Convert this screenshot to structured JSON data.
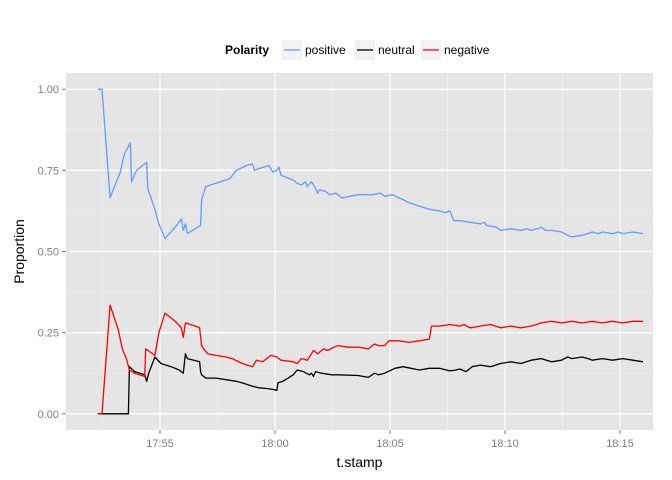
{
  "chart_data": {
    "type": "line",
    "title": "",
    "xlabel": "t.stamp",
    "ylabel": "Proportion",
    "x_unit": "minutes past 17:00",
    "xlim": [
      52.3,
      76.0
    ],
    "ylim": [
      -0.05,
      1.05
    ],
    "x_ticks": [
      55,
      60,
      65,
      70,
      75
    ],
    "x_tick_labels": [
      "17:55",
      "18:00",
      "18:05",
      "18:10",
      "18:15"
    ],
    "y_ticks": [
      0,
      0.25,
      0.5,
      0.75,
      1.0
    ],
    "y_tick_labels": [
      "0.00",
      "0.25",
      "0.50",
      "0.75",
      "1.00"
    ],
    "grid": true,
    "legend": {
      "title": "Polarity",
      "position": "top"
    },
    "series": [
      {
        "name": "positive",
        "color": "#619CFF",
        "points": [
          [
            52.2,
            1.0
          ],
          [
            52.4,
            1.0
          ],
          [
            52.8,
            0.665
          ],
          [
            53.3,
            0.745
          ],
          [
            53.5,
            0.8
          ],
          [
            53.8,
            0.835
          ],
          [
            53.85,
            0.715
          ],
          [
            54.1,
            0.75
          ],
          [
            54.6,
            0.775
          ],
          [
            54.65,
            0.695
          ],
          [
            55.0,
            0.63
          ],
          [
            55.2,
            0.585
          ],
          [
            55.5,
            0.54
          ],
          [
            56.0,
            0.575
          ],
          [
            56.3,
            0.6
          ],
          [
            56.4,
            0.565
          ],
          [
            56.5,
            0.585
          ],
          [
            56.6,
            0.555
          ],
          [
            57.1,
            0.575
          ],
          [
            57.25,
            0.58
          ],
          [
            57.3,
            0.66
          ],
          [
            57.4,
            0.68
          ],
          [
            57.5,
            0.7
          ],
          [
            58.0,
            0.71
          ],
          [
            58.7,
            0.725
          ],
          [
            59.0,
            0.75
          ],
          [
            59.5,
            0.765
          ],
          [
            59.8,
            0.77
          ],
          [
            59.9,
            0.75
          ],
          [
            60.1,
            0.755
          ],
          [
            60.6,
            0.765
          ],
          [
            60.8,
            0.745
          ],
          [
            61.0,
            0.75
          ],
          [
            61.1,
            0.76
          ],
          [
            61.2,
            0.735
          ],
          [
            61.8,
            0.72
          ],
          [
            62.0,
            0.71
          ],
          [
            62.2,
            0.705
          ],
          [
            62.4,
            0.715
          ],
          [
            62.5,
            0.7
          ],
          [
            62.7,
            0.715
          ],
          [
            62.8,
            0.705
          ],
          [
            62.9,
            0.695
          ],
          [
            63.0,
            0.68
          ],
          [
            63.1,
            0.69
          ],
          [
            63.4,
            0.685
          ],
          [
            63.6,
            0.675
          ],
          [
            63.9,
            0.68
          ],
          [
            64.2,
            0.665
          ],
          [
            65.0,
            0.675
          ],
          [
            65.7,
            0.675
          ],
          [
            66.1,
            0.68
          ],
          [
            66.3,
            0.67
          ],
          [
            66.7,
            0.675
          ],
          [
            67.0,
            0.665
          ],
          [
            67.2,
            0.66
          ],
          [
            67.5,
            0.65
          ],
          [
            68.0,
            0.64
          ],
          [
            68.5,
            0.63
          ],
          [
            69.0,
            0.625
          ],
          [
            69.3,
            0.62
          ],
          [
            69.5,
            0.625
          ],
          [
            69.6,
            0.61
          ],
          [
            69.7,
            0.595
          ],
          [
            70.0,
            0.595
          ],
          [
            71.0,
            0.585
          ],
          [
            71.2,
            0.59
          ],
          [
            71.3,
            0.58
          ],
          [
            71.8,
            0.575
          ],
          [
            72.0,
            0.565
          ],
          [
            72.5,
            0.57
          ],
          [
            73.0,
            0.565
          ],
          [
            73.3,
            0.57
          ],
          [
            73.5,
            0.565
          ],
          [
            73.8,
            0.57
          ],
          [
            74.0,
            0.575
          ],
          [
            74.2,
            0.565
          ],
          [
            74.5,
            0.565
          ],
          [
            75.0,
            0.56
          ],
          [
            75.3,
            0.55
          ],
          [
            75.5,
            0.545
          ],
          [
            76.0,
            0.55
          ],
          [
            76.3,
            0.555
          ],
          [
            76.5,
            0.56
          ],
          [
            76.8,
            0.555
          ],
          [
            77.0,
            0.56
          ],
          [
            77.5,
            0.555
          ],
          [
            77.8,
            0.56
          ],
          [
            78.0,
            0.555
          ],
          [
            78.5,
            0.56
          ],
          [
            79.0,
            0.555
          ]
        ]
      },
      {
        "name": "neutral",
        "color": "#000000",
        "points": [
          [
            52.2,
            0.0
          ],
          [
            53.5,
            0.0
          ],
          [
            53.7,
            0.0
          ],
          [
            53.75,
            0.145
          ],
          [
            54.0,
            0.13
          ],
          [
            54.5,
            0.12
          ],
          [
            54.6,
            0.1
          ],
          [
            54.7,
            0.125
          ],
          [
            55.0,
            0.175
          ],
          [
            55.3,
            0.155
          ],
          [
            55.8,
            0.145
          ],
          [
            56.2,
            0.135
          ],
          [
            56.4,
            0.125
          ],
          [
            56.5,
            0.185
          ],
          [
            56.6,
            0.17
          ],
          [
            57.2,
            0.16
          ],
          [
            57.25,
            0.13
          ],
          [
            57.3,
            0.12
          ],
          [
            57.5,
            0.11
          ],
          [
            58.0,
            0.11
          ],
          [
            58.5,
            0.105
          ],
          [
            59.0,
            0.1
          ],
          [
            59.3,
            0.095
          ],
          [
            59.8,
            0.085
          ],
          [
            60.1,
            0.08
          ],
          [
            60.5,
            0.078
          ],
          [
            60.8,
            0.075
          ],
          [
            61.0,
            0.072
          ],
          [
            61.05,
            0.095
          ],
          [
            61.3,
            0.1
          ],
          [
            61.8,
            0.12
          ],
          [
            62.0,
            0.135
          ],
          [
            62.3,
            0.13
          ],
          [
            62.6,
            0.12
          ],
          [
            62.7,
            0.125
          ],
          [
            62.8,
            0.115
          ],
          [
            62.9,
            0.13
          ],
          [
            63.2,
            0.125
          ],
          [
            63.7,
            0.12
          ],
          [
            64.0,
            0.12
          ],
          [
            65.0,
            0.118
          ],
          [
            65.5,
            0.112
          ],
          [
            65.8,
            0.125
          ],
          [
            66.0,
            0.12
          ],
          [
            66.3,
            0.125
          ],
          [
            66.8,
            0.14
          ],
          [
            67.2,
            0.145
          ],
          [
            67.6,
            0.14
          ],
          [
            68.0,
            0.135
          ],
          [
            68.5,
            0.14
          ],
          [
            69.0,
            0.14
          ],
          [
            69.5,
            0.132
          ],
          [
            69.8,
            0.135
          ],
          [
            70.0,
            0.138
          ],
          [
            70.3,
            0.13
          ],
          [
            70.6,
            0.145
          ],
          [
            71.0,
            0.15
          ],
          [
            71.5,
            0.145
          ],
          [
            72.0,
            0.155
          ],
          [
            72.5,
            0.16
          ],
          [
            73.0,
            0.155
          ],
          [
            73.5,
            0.165
          ],
          [
            74.0,
            0.17
          ],
          [
            74.5,
            0.16
          ],
          [
            75.0,
            0.165
          ],
          [
            75.3,
            0.175
          ],
          [
            75.5,
            0.17
          ],
          [
            76.0,
            0.175
          ],
          [
            76.3,
            0.17
          ],
          [
            76.5,
            0.165
          ],
          [
            77.0,
            0.17
          ],
          [
            77.5,
            0.165
          ],
          [
            78.0,
            0.17
          ],
          [
            78.5,
            0.165
          ],
          [
            79.0,
            0.16
          ]
        ]
      },
      {
        "name": "negative",
        "color": "#FF0000",
        "points": [
          [
            52.2,
            0.0
          ],
          [
            52.4,
            0.0
          ],
          [
            52.8,
            0.335
          ],
          [
            53.2,
            0.26
          ],
          [
            53.4,
            0.2
          ],
          [
            53.6,
            0.17
          ],
          [
            53.75,
            0.135
          ],
          [
            54.0,
            0.125
          ],
          [
            54.5,
            0.115
          ],
          [
            54.55,
            0.2
          ],
          [
            55.0,
            0.18
          ],
          [
            55.2,
            0.25
          ],
          [
            55.5,
            0.31
          ],
          [
            56.0,
            0.285
          ],
          [
            56.3,
            0.265
          ],
          [
            56.4,
            0.235
          ],
          [
            56.5,
            0.28
          ],
          [
            57.0,
            0.27
          ],
          [
            57.2,
            0.265
          ],
          [
            57.3,
            0.21
          ],
          [
            57.4,
            0.2
          ],
          [
            57.6,
            0.185
          ],
          [
            58.0,
            0.18
          ],
          [
            58.5,
            0.175
          ],
          [
            58.8,
            0.17
          ],
          [
            59.3,
            0.155
          ],
          [
            59.8,
            0.145
          ],
          [
            60.0,
            0.165
          ],
          [
            60.3,
            0.16
          ],
          [
            60.7,
            0.18
          ],
          [
            61.0,
            0.175
          ],
          [
            61.2,
            0.165
          ],
          [
            61.8,
            0.16
          ],
          [
            62.0,
            0.155
          ],
          [
            62.2,
            0.17
          ],
          [
            62.5,
            0.165
          ],
          [
            62.8,
            0.195
          ],
          [
            63.0,
            0.185
          ],
          [
            63.3,
            0.2
          ],
          [
            63.5,
            0.195
          ],
          [
            63.8,
            0.205
          ],
          [
            64.0,
            0.21
          ],
          [
            64.5,
            0.205
          ],
          [
            65.0,
            0.205
          ],
          [
            65.5,
            0.2
          ],
          [
            65.8,
            0.215
          ],
          [
            66.0,
            0.21
          ],
          [
            66.3,
            0.21
          ],
          [
            66.5,
            0.225
          ],
          [
            67.0,
            0.225
          ],
          [
            67.5,
            0.22
          ],
          [
            68.0,
            0.225
          ],
          [
            68.5,
            0.23
          ],
          [
            68.6,
            0.27
          ],
          [
            69.0,
            0.27
          ],
          [
            69.5,
            0.275
          ],
          [
            70.0,
            0.27
          ],
          [
            70.2,
            0.275
          ],
          [
            70.5,
            0.265
          ],
          [
            71.0,
            0.27
          ],
          [
            71.5,
            0.275
          ],
          [
            72.0,
            0.265
          ],
          [
            72.5,
            0.27
          ],
          [
            73.0,
            0.265
          ],
          [
            73.5,
            0.27
          ],
          [
            74.0,
            0.28
          ],
          [
            74.5,
            0.285
          ],
          [
            75.0,
            0.28
          ],
          [
            75.5,
            0.285
          ],
          [
            76.0,
            0.28
          ],
          [
            76.5,
            0.285
          ],
          [
            77.0,
            0.28
          ],
          [
            77.5,
            0.285
          ],
          [
            78.0,
            0.28
          ],
          [
            78.5,
            0.285
          ],
          [
            79.0,
            0.285
          ]
        ]
      }
    ]
  }
}
